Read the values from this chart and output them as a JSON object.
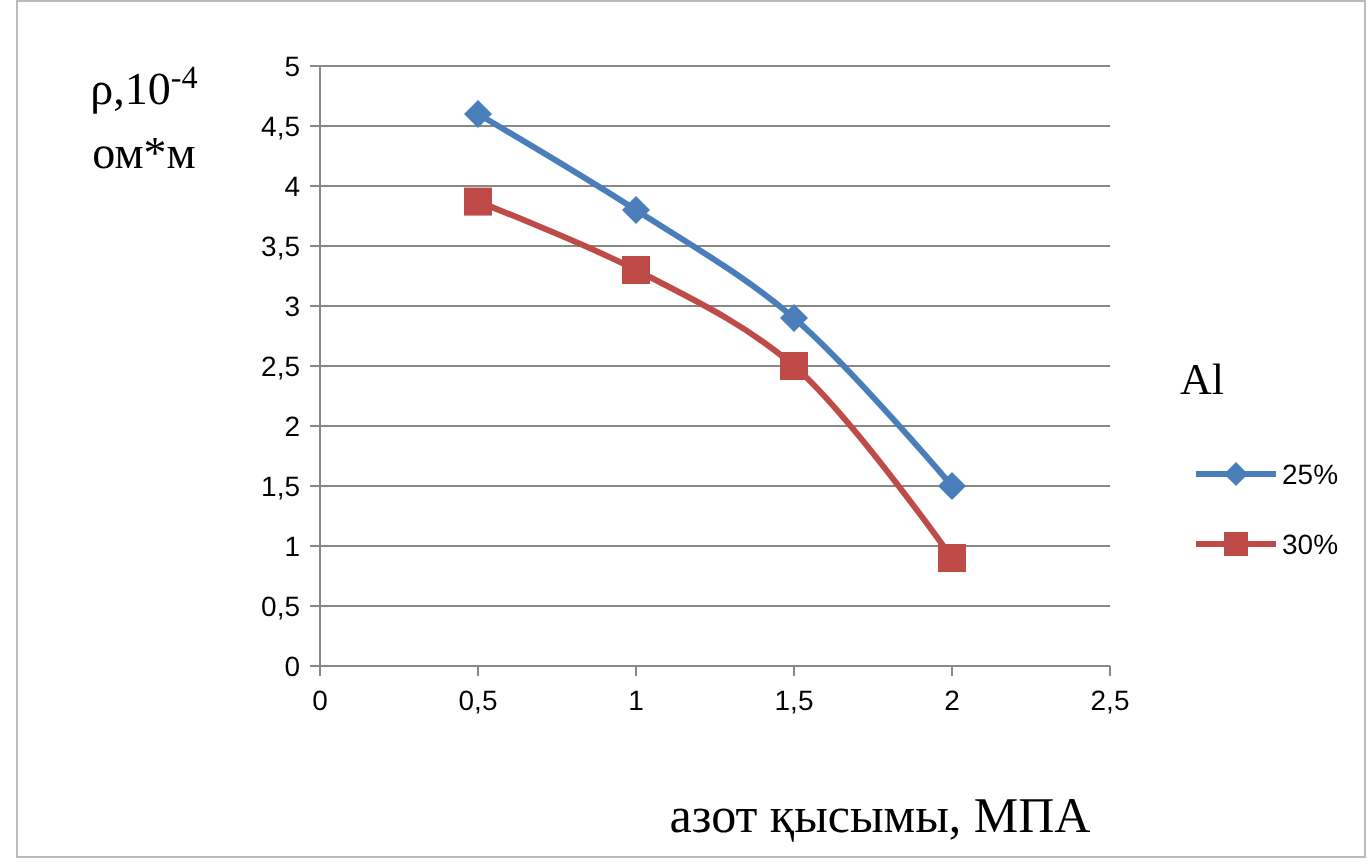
{
  "chart_data": {
    "type": "line",
    "xlabel": "азот қысымы,  МПА",
    "ylabel": "ρ,10$^{-4}$ ом*м",
    "legend_title": "Al",
    "legend": "right",
    "grid": "y",
    "xlim": [
      0,
      2.5
    ],
    "xticks": [
      0,
      {
        "value": 0.5,
        "label": "0,5"
      },
      1,
      {
        "value": 1.5,
        "label": "1,5"
      },
      2,
      {
        "value": 2.5,
        "label": "2,5"
      }
    ],
    "ylim": [
      0,
      5
    ],
    "yticks": [
      0,
      {
        "value": 0.5,
        "label": "0,5"
      },
      1,
      {
        "value": 1.5,
        "label": "1,5"
      },
      2,
      {
        "value": 2.5,
        "label": "2,5"
      },
      3,
      {
        "value": 3.5,
        "label": "3,5"
      },
      4,
      {
        "value": 4.5,
        "label": "4,5"
      },
      5
    ],
    "x": [
      0.5,
      1,
      1.5,
      2
    ],
    "series": [
      {
        "name": "25%",
        "color": "#4a7ebb",
        "marker": "diamond",
        "values": [
          4.6,
          3.8,
          2.9,
          1.5
        ]
      },
      {
        "name": "30%",
        "color": "#be4b48",
        "marker": "square",
        "values": [
          3.87,
          3.3,
          2.5,
          0.9
        ]
      }
    ]
  }
}
